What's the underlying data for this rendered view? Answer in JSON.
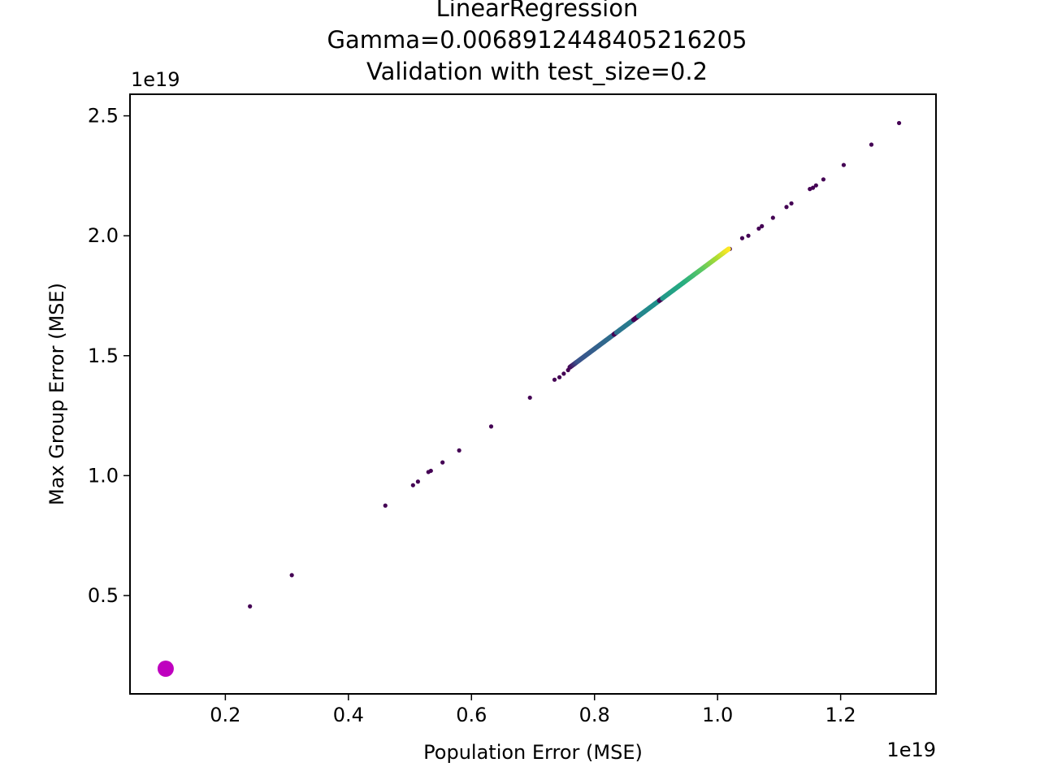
{
  "chart_data": {
    "type": "scatter",
    "title_lines": [
      "LinearRegression",
      "Gamma=0.006891244840521620​5",
      "Validation with test_size=0.2"
    ],
    "xlabel": "Population Error (MSE)",
    "ylabel": "Max Group Error (MSE)",
    "x_offset_label": "1e19",
    "y_offset_label": "1e19",
    "xlim": [
      0.045,
      1.355
    ],
    "ylim": [
      0.09,
      2.59
    ],
    "x_ticks": [
      0.2,
      0.4,
      0.6,
      0.8,
      1.0,
      1.2
    ],
    "x_tick_labels": [
      "0.2",
      "0.4",
      "0.6",
      "0.8",
      "1.0",
      "1.2"
    ],
    "y_ticks": [
      0.5,
      1.0,
      1.5,
      2.0,
      2.5
    ],
    "y_tick_labels": [
      "0.5",
      "1.0",
      "1.5",
      "2.0",
      "2.5"
    ],
    "grid": false,
    "colors": {
      "dark": "#440154",
      "teal": "#21918c",
      "green": "#5ec962",
      "yellow": "#fde725",
      "highlight": "#bf00bf"
    },
    "scatter_points": {
      "x": [
        0.24,
        0.308,
        0.46,
        0.505,
        0.513,
        0.53,
        0.534,
        0.553,
        0.58,
        0.632,
        0.695,
        0.735,
        0.743,
        0.75,
        0.757,
        1.02,
        1.04,
        1.05,
        1.067,
        1.072,
        1.09,
        1.112,
        1.12,
        1.15,
        1.155,
        1.16,
        1.172,
        1.205,
        1.25,
        1.295
      ],
      "y": [
        0.455,
        0.585,
        0.875,
        0.96,
        0.975,
        1.015,
        1.02,
        1.055,
        1.105,
        1.205,
        1.325,
        1.4,
        1.41,
        1.425,
        1.44,
        1.945,
        1.99,
        2.0,
        2.03,
        2.04,
        2.075,
        2.12,
        2.135,
        2.195,
        2.2,
        2.21,
        2.235,
        2.295,
        2.38,
        2.47
      ]
    },
    "dense_segment": {
      "x_start": 0.76,
      "x_end": 1.018,
      "y_start": 1.452,
      "y_end": 1.945,
      "count": 260
    },
    "highlight_point": {
      "x": 0.103,
      "y": 0.195
    }
  }
}
